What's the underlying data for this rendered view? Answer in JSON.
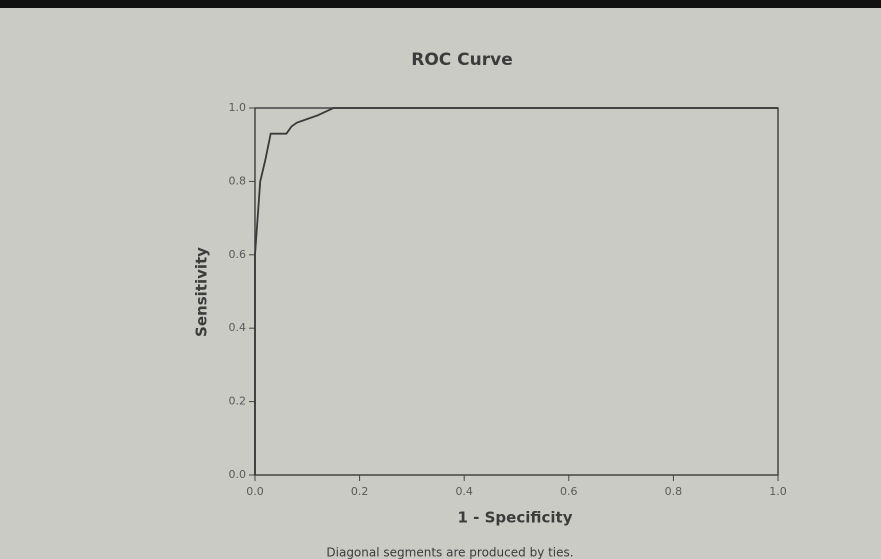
{
  "chart_data": {
    "type": "line",
    "title": "ROC Curve",
    "x_label": "1 - Specificity",
    "y_label": "Sensitivity",
    "x": [
      0,
      0,
      0.01,
      0.02,
      0.03,
      0.06,
      0.07,
      0.08,
      0.1,
      0.12,
      0.15,
      1.0
    ],
    "values": [
      0,
      0.6,
      0.8,
      0.86,
      0.93,
      0.93,
      0.95,
      0.96,
      0.97,
      0.98,
      1.0,
      1.0
    ],
    "color": "#3a3a3a",
    "xlim": [
      0,
      1
    ],
    "ylim": [
      0,
      1
    ],
    "xticks": [
      {
        "value": 0,
        "label": "0.0"
      },
      {
        "value": 0.2,
        "label": "0.2"
      },
      {
        "value": 0.4,
        "label": "0.4"
      },
      {
        "value": 0.6,
        "label": "0.6"
      },
      {
        "value": 0.8,
        "label": "0.8"
      },
      {
        "value": 1,
        "label": "1.0"
      }
    ],
    "yticks": [
      {
        "value": 0,
        "label": "0.0"
      },
      {
        "value": 0.2,
        "label": "0.2"
      },
      {
        "value": 0.4,
        "label": "0.4"
      },
      {
        "value": 0.6,
        "label": "0.6"
      },
      {
        "value": 0.8,
        "label": "0.8"
      },
      {
        "value": 1,
        "label": "1.0"
      }
    ],
    "caption": "Diagonal segments are produced by ties."
  }
}
